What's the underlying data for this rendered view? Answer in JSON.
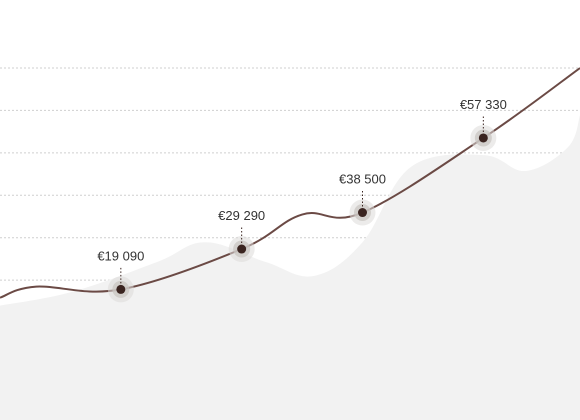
{
  "chart_data": {
    "type": "line",
    "title": "",
    "xlabel": "",
    "ylabel": "",
    "grid": true,
    "legend": "none",
    "ylim": [
      0,
      75000
    ],
    "highlighted_points": [
      {
        "x": 1,
        "y": 19090,
        "label": "€19 090"
      },
      {
        "x": 2,
        "y": 29290,
        "label": "€29 290"
      },
      {
        "x": 3,
        "y": 38500,
        "label": "€38 500"
      },
      {
        "x": 4,
        "y": 57330,
        "label": "€57 330"
      }
    ],
    "series": [
      {
        "values": [
          {
            "x": 0.0,
            "y": 17000
          },
          {
            "x": 0.3,
            "y": 19800
          },
          {
            "x": 1.0,
            "y": 19090
          },
          {
            "x": 2.0,
            "y": 29290
          },
          {
            "x": 2.5,
            "y": 38000
          },
          {
            "x": 3.0,
            "y": 38500
          },
          {
            "x": 4.0,
            "y": 57330
          },
          {
            "x": 4.8,
            "y": 75000
          }
        ]
      }
    ],
    "background_area": {
      "values": [
        {
          "x": 0.0,
          "y": 15000
        },
        {
          "x": 0.6,
          "y": 18500
        },
        {
          "x": 1.3,
          "y": 26000
        },
        {
          "x": 1.7,
          "y": 31000
        },
        {
          "x": 2.2,
          "y": 26000
        },
        {
          "x": 2.6,
          "y": 22500
        },
        {
          "x": 3.0,
          "y": 31000
        },
        {
          "x": 3.4,
          "y": 50000
        },
        {
          "x": 4.0,
          "y": 53000
        },
        {
          "x": 4.35,
          "y": 49000
        },
        {
          "x": 4.7,
          "y": 55000
        },
        {
          "x": 4.8,
          "y": 63000
        }
      ]
    }
  },
  "colors": {
    "line": "#6b4a45",
    "marker": "#3a2420",
    "area": "#f2f2f2",
    "grid": "#cfcfcf",
    "label": "#333333"
  }
}
